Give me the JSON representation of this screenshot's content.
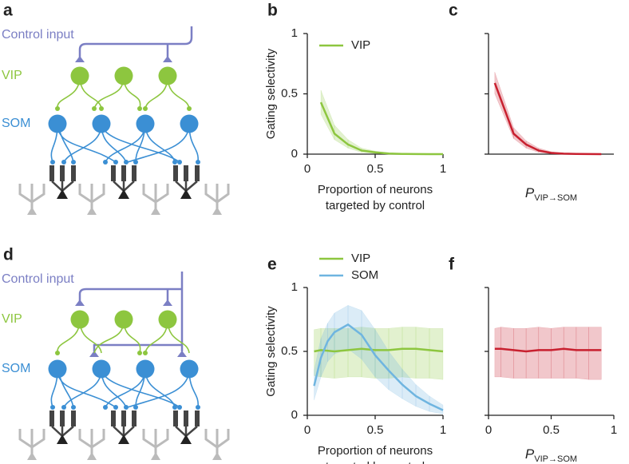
{
  "diagram_a": {
    "panel_label": "a",
    "control_label": "Control input",
    "vip_label": "VIP",
    "som_label": "SOM"
  },
  "diagram_d": {
    "panel_label": "d",
    "control_label": "Control input",
    "vip_label": "VIP",
    "som_label": "SOM"
  },
  "chart_data": [
    {
      "type": "line",
      "panel_label": "b",
      "ylabel": "Gating selectivity",
      "xlabel_lines": [
        "Proportion of neurons",
        "targeted by control"
      ],
      "xlim": [
        0,
        1
      ],
      "xticks": [
        0,
        0.5,
        1
      ],
      "ylim": [
        0,
        1
      ],
      "yticks": [
        0,
        0.5,
        1
      ],
      "show_ytick_labels": true,
      "legend": "top-left",
      "series": [
        {
          "name": "VIP",
          "color": "#8dc63f",
          "x": [
            0.1,
            0.2,
            0.3,
            0.4,
            0.5,
            0.6,
            0.7,
            0.8,
            0.9,
            1.0
          ],
          "values": [
            0.43,
            0.17,
            0.08,
            0.03,
            0.015,
            0.005,
            0.002,
            0.001,
            0,
            0
          ],
          "band_lower": [
            0.33,
            0.12,
            0.05,
            0.015,
            0.005,
            0.001,
            0,
            0,
            0,
            0
          ],
          "band_upper": [
            0.53,
            0.24,
            0.12,
            0.05,
            0.025,
            0.01,
            0.005,
            0.002,
            0.001,
            0
          ]
        }
      ]
    },
    {
      "type": "line",
      "panel_label": "c",
      "xlabel_main": "P",
      "xlabel_subscript": "VIP→SOM",
      "xlim": [
        0,
        1
      ],
      "ylim": [
        0,
        1
      ],
      "yticks": [
        0,
        0.5,
        1
      ],
      "show_ytick_labels": false,
      "series": [
        {
          "color": "#c8202f",
          "x": [
            0.05,
            0.2,
            0.3,
            0.4,
            0.5,
            0.6,
            0.7,
            0.8,
            0.9
          ],
          "values": [
            0.59,
            0.17,
            0.08,
            0.03,
            0.01,
            0.004,
            0.002,
            0.001,
            0
          ],
          "band_lower": [
            0.5,
            0.13,
            0.05,
            0.015,
            0.004,
            0.001,
            0,
            0,
            0
          ],
          "band_upper": [
            0.68,
            0.22,
            0.11,
            0.05,
            0.02,
            0.008,
            0.004,
            0.002,
            0.001
          ]
        }
      ]
    },
    {
      "type": "line",
      "panel_label": "e",
      "ylabel": "Gating selectivity",
      "xlabel_lines": [
        "Proportion of neurons",
        "targeted by control"
      ],
      "xlim": [
        0,
        1
      ],
      "xticks": [
        0,
        0.5,
        1
      ],
      "ylim": [
        0,
        1
      ],
      "yticks": [
        0,
        0.5,
        1
      ],
      "show_ytick_labels": true,
      "legend": "top-left",
      "series": [
        {
          "name": "VIP",
          "color": "#8dc63f",
          "x": [
            0.05,
            0.1,
            0.2,
            0.3,
            0.4,
            0.5,
            0.6,
            0.7,
            0.8,
            0.9,
            1.0
          ],
          "values": [
            0.5,
            0.51,
            0.5,
            0.51,
            0.52,
            0.51,
            0.51,
            0.52,
            0.52,
            0.51,
            0.5
          ],
          "band_lower": [
            0.31,
            0.3,
            0.29,
            0.3,
            0.3,
            0.29,
            0.29,
            0.3,
            0.29,
            0.29,
            0.28
          ],
          "band_upper": [
            0.67,
            0.68,
            0.68,
            0.68,
            0.69,
            0.68,
            0.68,
            0.69,
            0.69,
            0.68,
            0.68
          ]
        },
        {
          "name": "SOM",
          "color": "#6fb5e0",
          "x": [
            0.05,
            0.1,
            0.15,
            0.2,
            0.3,
            0.4,
            0.5,
            0.6,
            0.7,
            0.8,
            0.9,
            1.0
          ],
          "values": [
            0.23,
            0.45,
            0.58,
            0.65,
            0.71,
            0.63,
            0.47,
            0.35,
            0.24,
            0.15,
            0.09,
            0.04
          ],
          "band_lower": [
            0.12,
            0.3,
            0.42,
            0.48,
            0.52,
            0.44,
            0.3,
            0.2,
            0.13,
            0.07,
            0.03,
            0.01
          ],
          "band_upper": [
            0.35,
            0.6,
            0.72,
            0.8,
            0.86,
            0.82,
            0.67,
            0.5,
            0.36,
            0.24,
            0.15,
            0.08
          ]
        }
      ]
    },
    {
      "type": "line",
      "panel_label": "f",
      "xlabel_main": "P",
      "xlabel_subscript": "VIP→SOM",
      "xlim": [
        0,
        1
      ],
      "xticks": [
        0,
        0.5,
        1
      ],
      "ylim": [
        0,
        1
      ],
      "yticks": [
        0,
        0.5,
        1
      ],
      "show_ytick_labels": false,
      "series": [
        {
          "color": "#c8202f",
          "x": [
            0.05,
            0.1,
            0.2,
            0.3,
            0.4,
            0.5,
            0.6,
            0.7,
            0.8,
            0.9
          ],
          "values": [
            0.52,
            0.52,
            0.51,
            0.5,
            0.51,
            0.51,
            0.52,
            0.51,
            0.51,
            0.51
          ],
          "band_lower": [
            0.3,
            0.3,
            0.29,
            0.29,
            0.29,
            0.29,
            0.29,
            0.29,
            0.28,
            0.28
          ],
          "band_upper": [
            0.68,
            0.69,
            0.68,
            0.68,
            0.69,
            0.68,
            0.69,
            0.69,
            0.69,
            0.69
          ]
        }
      ]
    }
  ]
}
